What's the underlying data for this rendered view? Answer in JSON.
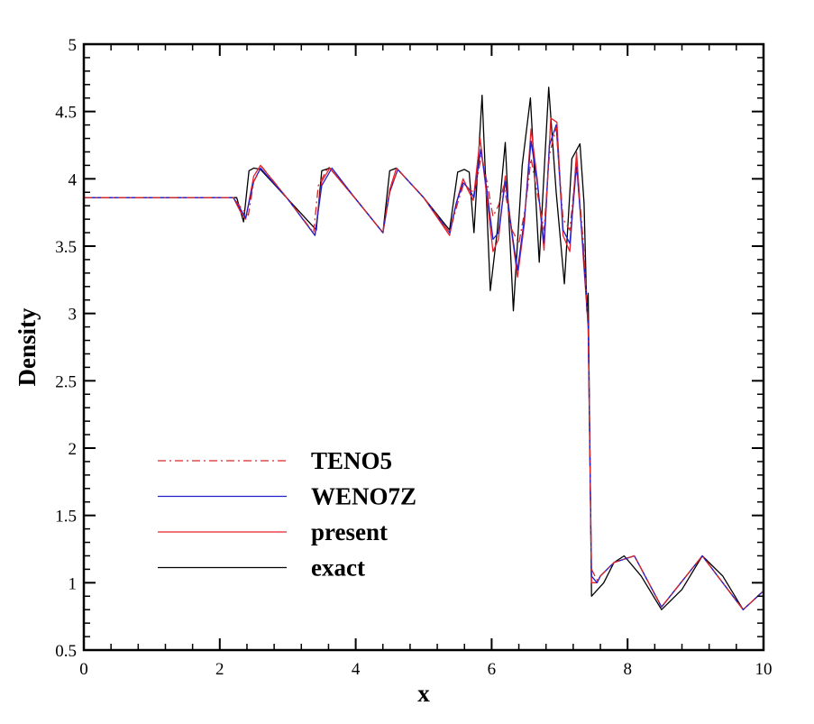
{
  "chart_data": {
    "type": "line",
    "title": "",
    "xlabel": "x",
    "ylabel": "Density",
    "xlim": [
      0,
      10
    ],
    "ylim": [
      0.5,
      5
    ],
    "xticks": [
      0,
      2,
      4,
      6,
      8,
      10
    ],
    "xtick_labels": [
      "0",
      "2",
      "4",
      "6",
      "8",
      "10"
    ],
    "yticks": [
      0.5,
      1,
      1.5,
      2,
      2.5,
      3,
      3.5,
      4,
      4.5,
      5
    ],
    "ytick_labels": [
      "0.5",
      "1",
      "1.5",
      "2",
      "2.5",
      "3",
      "3.5",
      "4",
      "4.5",
      "5"
    ],
    "grid": false,
    "legend_position": "bottom-left",
    "series": [
      {
        "name": "TENO5",
        "color": "#d62728",
        "dash": "dashdot",
        "x": [
          0,
          2.2,
          2.32,
          2.42,
          2.5,
          2.62,
          3.0,
          3.38,
          3.45,
          3.6,
          4.0,
          4.4,
          4.5,
          4.62,
          5.0,
          5.38,
          5.5,
          5.6,
          5.66,
          5.75,
          5.85,
          5.93,
          6.02,
          6.1,
          6.18,
          6.3,
          6.4,
          6.5,
          6.58,
          6.67,
          6.77,
          6.85,
          6.95,
          7.05,
          7.15,
          7.25,
          7.35,
          7.42,
          7.47,
          7.55,
          7.6,
          7.8,
          8.1,
          8.5,
          9.1,
          9.7,
          10.0
        ],
        "y": [
          3.86,
          3.86,
          3.78,
          3.73,
          3.98,
          4.09,
          3.85,
          3.6,
          3.95,
          4.09,
          3.85,
          3.6,
          3.9,
          4.07,
          3.86,
          3.6,
          3.82,
          3.98,
          3.92,
          3.9,
          4.18,
          3.98,
          3.72,
          3.8,
          3.95,
          3.62,
          3.52,
          3.8,
          4.15,
          3.9,
          3.62,
          4.18,
          4.38,
          3.7,
          3.62,
          4.12,
          3.52,
          2.9,
          1.1,
          1.02,
          1.05,
          1.15,
          1.2,
          0.82,
          1.2,
          0.8,
          0.94
        ]
      },
      {
        "name": "WENO7Z",
        "color": "#1f1fd0",
        "dash": "solid",
        "x": [
          0,
          2.2,
          2.3,
          2.38,
          2.5,
          2.6,
          3.0,
          3.4,
          3.5,
          3.65,
          4.0,
          4.4,
          4.5,
          4.62,
          5.0,
          5.38,
          5.48,
          5.58,
          5.66,
          5.74,
          5.84,
          5.93,
          6.02,
          6.1,
          6.2,
          6.3,
          6.38,
          6.48,
          6.58,
          6.67,
          6.77,
          6.85,
          6.95,
          7.05,
          7.15,
          7.25,
          7.35,
          7.42,
          7.47,
          7.55,
          7.6,
          7.8,
          8.1,
          8.5,
          9.1,
          9.7,
          10.0
        ],
        "y": [
          3.86,
          3.86,
          3.78,
          3.71,
          3.98,
          4.08,
          3.85,
          3.58,
          3.95,
          4.08,
          3.85,
          3.6,
          3.9,
          4.07,
          3.86,
          3.6,
          3.82,
          3.97,
          3.93,
          3.86,
          4.22,
          3.92,
          3.55,
          3.6,
          3.98,
          3.6,
          3.32,
          3.7,
          4.28,
          3.98,
          3.52,
          4.25,
          4.4,
          3.62,
          3.52,
          4.1,
          3.45,
          2.9,
          1.05,
          1.0,
          1.05,
          1.15,
          1.2,
          0.82,
          1.2,
          0.8,
          0.94
        ]
      },
      {
        "name": "present",
        "color": "#e8202a",
        "dash": "solid",
        "x": [
          0,
          2.2,
          2.3,
          2.38,
          2.5,
          2.6,
          3.0,
          3.4,
          3.5,
          3.62,
          4.0,
          4.4,
          4.5,
          4.6,
          5.0,
          5.38,
          5.48,
          5.58,
          5.65,
          5.73,
          5.83,
          5.91,
          6.02,
          6.1,
          6.2,
          6.3,
          6.38,
          6.48,
          6.58,
          6.67,
          6.77,
          6.87,
          6.96,
          7.05,
          7.15,
          7.25,
          7.35,
          7.42,
          7.47,
          7.55,
          7.6,
          7.8,
          8.1,
          8.5,
          9.1,
          9.7,
          10.0
        ],
        "y": [
          3.86,
          3.86,
          3.76,
          3.7,
          4.02,
          4.1,
          3.85,
          3.58,
          3.98,
          4.08,
          3.85,
          3.6,
          3.92,
          4.08,
          3.86,
          3.58,
          3.82,
          4.0,
          3.92,
          3.84,
          4.3,
          3.95,
          3.46,
          3.55,
          4.02,
          3.58,
          3.27,
          3.66,
          4.37,
          4.0,
          3.47,
          4.45,
          4.42,
          3.58,
          3.46,
          4.2,
          3.4,
          2.9,
          1.0,
          1.0,
          1.05,
          1.15,
          1.2,
          0.82,
          1.2,
          0.8,
          0.94
        ]
      },
      {
        "name": "exact",
        "color": "#000000",
        "dash": "solid",
        "x": [
          0,
          2.25,
          2.35,
          2.43,
          2.5,
          2.6,
          3.0,
          3.42,
          3.5,
          3.62,
          4.0,
          4.4,
          4.5,
          4.6,
          5.0,
          5.38,
          5.5,
          5.6,
          5.67,
          5.74,
          5.86,
          5.98,
          6.08,
          6.2,
          6.32,
          6.45,
          6.57,
          6.7,
          6.84,
          6.95,
          7.07,
          7.18,
          7.3,
          7.36,
          7.4,
          7.42,
          7.47,
          7.56,
          7.65,
          7.8,
          7.95,
          8.2,
          8.5,
          8.8,
          9.1,
          9.4,
          9.7,
          10.0
        ],
        "y": [
          3.86,
          3.86,
          3.68,
          4.06,
          4.08,
          4.07,
          3.85,
          3.62,
          4.06,
          4.08,
          3.85,
          3.6,
          4.06,
          4.08,
          3.86,
          3.62,
          4.05,
          4.07,
          4.05,
          3.6,
          4.62,
          3.17,
          3.6,
          4.27,
          3.02,
          4.1,
          4.6,
          3.38,
          4.68,
          3.9,
          3.22,
          4.15,
          4.26,
          3.82,
          3.02,
          3.15,
          0.9,
          0.95,
          1.0,
          1.15,
          1.2,
          1.05,
          0.8,
          0.95,
          1.2,
          1.05,
          0.8,
          0.94
        ]
      }
    ]
  }
}
